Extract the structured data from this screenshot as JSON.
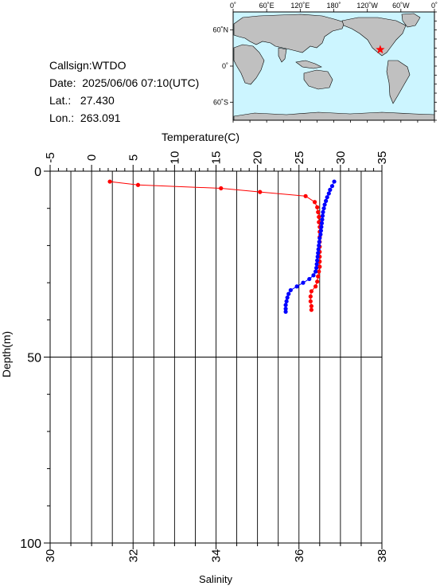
{
  "station": {
    "callsign_label": "Callsign:",
    "callsign": "WTDO",
    "date_label": "Date:",
    "date": "2025/06/06 07:10(UTC)",
    "lat_label": "Lat.:",
    "lat": "27.430",
    "lon_label": "Lon.:",
    "lon": "263.091"
  },
  "map": {
    "top_ticks": [
      "0˚",
      "60˚E",
      "120˚E",
      "180˚",
      "120˚W",
      "60˚W",
      "0˚"
    ],
    "left_ticks": [
      "60˚N",
      "0˚",
      "60˚S"
    ],
    "ocean_color": "#ccf5ff",
    "land_color": "#c0c0c0",
    "marker_color": "#ff0000",
    "marker_shape": "star"
  },
  "chart_data": {
    "type": "line",
    "y_axis": {
      "label": "Depth(m)",
      "range": [
        0,
        100
      ],
      "inverted": true,
      "ticks": [
        0,
        50,
        100
      ],
      "grid": true
    },
    "top_axis": {
      "label": "Temperature(C)",
      "range": [
        -5,
        35
      ],
      "ticks": [
        -5,
        0,
        5,
        10,
        15,
        20,
        25,
        30,
        35
      ],
      "grid": true
    },
    "bottom_axis": {
      "label": "Salinity",
      "range": [
        30,
        38
      ],
      "ticks": [
        30,
        32,
        34,
        36,
        38
      ]
    },
    "series": [
      {
        "quantity": "temperature",
        "axis": "top",
        "color": "#ff0000",
        "points": [
          [
            2.2,
            2.8
          ],
          [
            5.6,
            3.7
          ],
          [
            15.6,
            4.6
          ],
          [
            20.3,
            5.6
          ],
          [
            25.8,
            6.7
          ],
          [
            26.9,
            8.3
          ],
          [
            27.2,
            9.7
          ],
          [
            27.3,
            11.0
          ],
          [
            27.4,
            12.3
          ],
          [
            27.4,
            13.7
          ],
          [
            27.5,
            15.0
          ],
          [
            27.5,
            16.3
          ],
          [
            27.5,
            17.7
          ],
          [
            27.5,
            19.0
          ],
          [
            27.5,
            20.3
          ],
          [
            27.5,
            21.7
          ],
          [
            27.5,
            23.0
          ],
          [
            27.5,
            24.3
          ],
          [
            27.5,
            25.7
          ],
          [
            27.4,
            27.0
          ],
          [
            27.3,
            28.3
          ],
          [
            27.2,
            29.7
          ],
          [
            27.0,
            31.0
          ],
          [
            26.5,
            32.3
          ],
          [
            26.4,
            33.7
          ],
          [
            26.4,
            35.0
          ],
          [
            26.5,
            36.3
          ],
          [
            26.5,
            37.3
          ]
        ]
      },
      {
        "quantity": "salinity",
        "axis": "bottom",
        "color": "#0000ff",
        "points": [
          [
            36.85,
            2.8
          ],
          [
            36.8,
            4.0
          ],
          [
            36.75,
            5.0
          ],
          [
            36.72,
            6.0
          ],
          [
            36.68,
            7.0
          ],
          [
            36.65,
            8.0
          ],
          [
            36.62,
            9.0
          ],
          [
            36.6,
            10.0
          ],
          [
            36.58,
            11.0
          ],
          [
            36.57,
            12.0
          ],
          [
            36.56,
            13.0
          ],
          [
            36.55,
            14.0
          ],
          [
            36.54,
            15.0
          ],
          [
            36.53,
            16.0
          ],
          [
            36.52,
            17.0
          ],
          [
            36.5,
            18.0
          ],
          [
            36.49,
            19.0
          ],
          [
            36.48,
            20.0
          ],
          [
            36.47,
            21.0
          ],
          [
            36.46,
            22.0
          ],
          [
            36.45,
            23.0
          ],
          [
            36.44,
            24.0
          ],
          [
            36.43,
            25.0
          ],
          [
            36.42,
            26.0
          ],
          [
            36.4,
            27.0
          ],
          [
            36.35,
            28.0
          ],
          [
            36.25,
            29.0
          ],
          [
            36.1,
            30.0
          ],
          [
            35.95,
            31.0
          ],
          [
            35.8,
            32.0
          ],
          [
            35.75,
            33.0
          ],
          [
            35.72,
            34.0
          ],
          [
            35.7,
            35.0
          ],
          [
            35.68,
            36.0
          ],
          [
            35.68,
            37.0
          ],
          [
            35.68,
            37.8
          ]
        ]
      }
    ]
  }
}
